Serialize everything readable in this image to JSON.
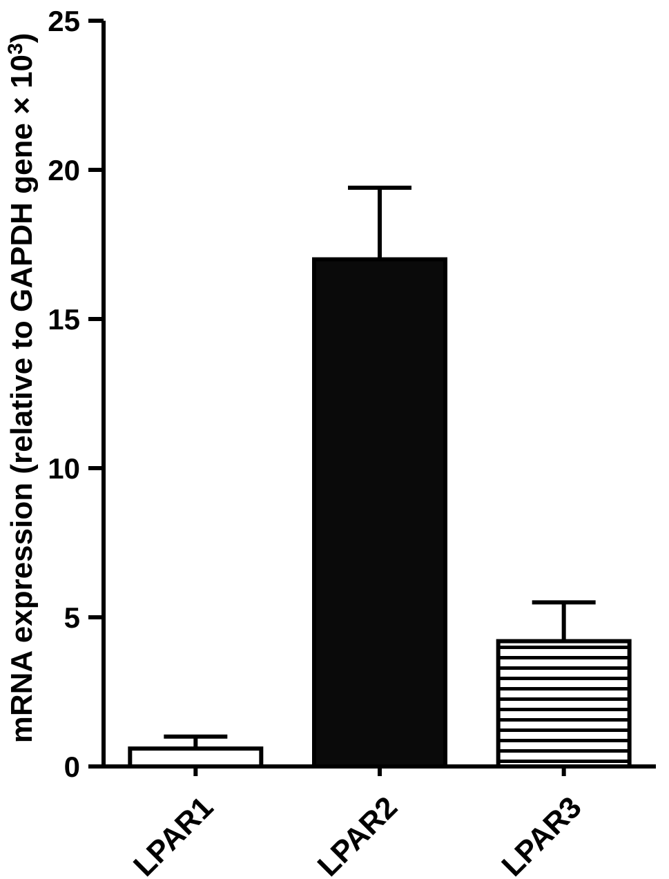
{
  "figure": {
    "ylabel_main": "mRNA expression (relative to GAPDH gene × 10",
    "ylabel_sup": "3",
    "ylabel_close": ")"
  },
  "chart_data": {
    "type": "bar",
    "title": "",
    "xlabel": "",
    "ylabel": "mRNA expression (relative to GAPDH gene × 10³)",
    "categories": [
      "LPAR1",
      "LPAR2",
      "LPAR3"
    ],
    "values": [
      0.6,
      17.0,
      4.2
    ],
    "errors": [
      0.4,
      2.4,
      1.3
    ],
    "error_bars": "upper only, capped",
    "bar_styles": [
      "open",
      "solid",
      "hstripe"
    ],
    "ylim": [
      0,
      25
    ],
    "yticks": [
      0,
      5,
      10,
      15,
      20,
      25
    ],
    "grid": false,
    "legend": "none",
    "colors": {
      "bar_fill_solid": "#0a0a0a",
      "bar_fill_open": "#ffffff",
      "stroke": "#000000",
      "background": "#ffffff"
    }
  }
}
